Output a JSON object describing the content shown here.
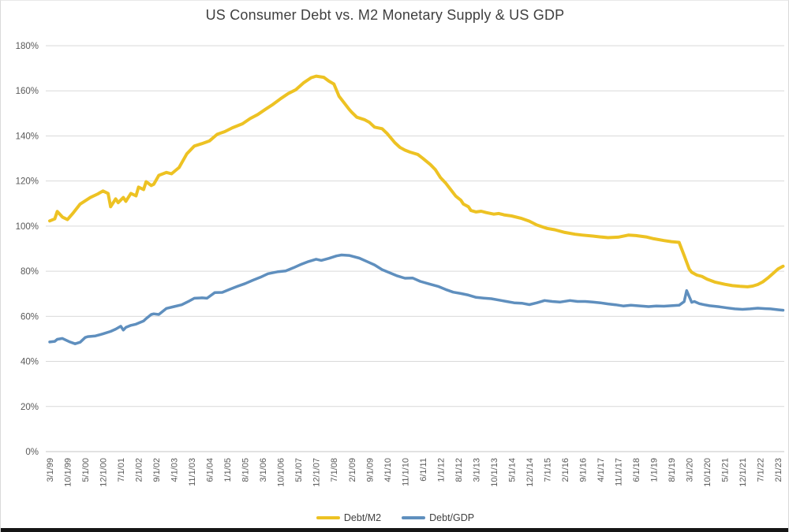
{
  "title": "US Consumer Debt vs. M2 Monetary Supply & US GDP",
  "chart_data": {
    "type": "line",
    "title": "US Consumer Debt vs. M2 Monetary Supply & US GDP",
    "xlabel": "",
    "ylabel": "",
    "y_axis": {
      "min": 0,
      "max": 180,
      "step": 20,
      "unit": "%",
      "tick_labels": [
        "0%",
        "20%",
        "40%",
        "60%",
        "80%",
        "100%",
        "120%",
        "140%",
        "160%",
        "180%"
      ]
    },
    "x_axis": {
      "tick_labels": [
        "3/1/99",
        "10/1/99",
        "5/1/00",
        "12/1/00",
        "7/1/01",
        "2/1/02",
        "9/1/02",
        "4/1/03",
        "11/1/03",
        "6/1/04",
        "1/1/05",
        "8/1/05",
        "3/1/06",
        "10/1/06",
        "5/1/07",
        "12/1/07",
        "7/1/08",
        "2/1/09",
        "9/1/09",
        "4/1/10",
        "11/1/10",
        "6/1/11",
        "1/1/12",
        "8/1/12",
        "3/1/13",
        "10/1/13",
        "5/1/14",
        "12/1/14",
        "7/1/15",
        "2/1/16",
        "9/1/16",
        "4/1/17",
        "11/1/17",
        "6/1/18",
        "1/1/19",
        "8/1/19",
        "3/1/20",
        "10/1/20",
        "5/1/21",
        "12/1/21",
        "7/1/22",
        "2/1/23"
      ],
      "months_between_ticks": 7,
      "total_month_span": 289,
      "label_rotation_deg": 90
    },
    "grid": "horizontal",
    "legend_position": "bottom",
    "series": [
      {
        "name": "Debt/M2",
        "color": "#EDC223",
        "stroke_width": 4,
        "points_unit": "percent, x = months since 3/1/99",
        "points": [
          [
            0,
            102.3
          ],
          [
            2,
            103.2
          ],
          [
            3,
            106.5
          ],
          [
            5,
            104
          ],
          [
            7,
            102.9
          ],
          [
            9,
            105.5
          ],
          [
            12,
            109.8
          ],
          [
            16,
            112.7
          ],
          [
            19,
            114.3
          ],
          [
            21,
            115.6
          ],
          [
            23,
            114.5
          ],
          [
            24,
            108.6
          ],
          [
            26,
            112.1
          ],
          [
            27,
            110.4
          ],
          [
            29,
            112.7
          ],
          [
            30,
            111
          ],
          [
            32,
            114.5
          ],
          [
            34,
            113.4
          ],
          [
            35,
            117.3
          ],
          [
            37,
            116.2
          ],
          [
            38,
            119.7
          ],
          [
            40,
            118
          ],
          [
            41,
            118.6
          ],
          [
            43,
            122.5
          ],
          [
            46,
            123.8
          ],
          [
            48,
            123.2
          ],
          [
            51,
            126
          ],
          [
            54,
            132
          ],
          [
            57,
            135.5
          ],
          [
            60,
            136.6
          ],
          [
            63,
            137.8
          ],
          [
            66,
            140.7
          ],
          [
            69,
            141.9
          ],
          [
            72,
            143.6
          ],
          [
            76,
            145.4
          ],
          [
            79,
            147.7
          ],
          [
            82,
            149.5
          ],
          [
            85,
            151.8
          ],
          [
            88,
            154
          ],
          [
            91,
            156.5
          ],
          [
            94,
            158.8
          ],
          [
            97,
            160.5
          ],
          [
            100,
            163.5
          ],
          [
            103,
            165.8
          ],
          [
            105,
            166.5
          ],
          [
            108,
            166
          ],
          [
            110,
            164.3
          ],
          [
            112,
            163
          ],
          [
            114,
            157.6
          ],
          [
            118,
            151.8
          ],
          [
            119,
            150.5
          ],
          [
            121,
            148.3
          ],
          [
            124,
            147.2
          ],
          [
            126,
            146
          ],
          [
            128,
            143.9
          ],
          [
            131,
            143.2
          ],
          [
            133,
            141
          ],
          [
            136,
            137
          ],
          [
            138,
            134.9
          ],
          [
            140,
            133.7
          ],
          [
            142,
            132.8
          ],
          [
            145,
            131.8
          ],
          [
            147,
            130.1
          ],
          [
            150,
            127.3
          ],
          [
            152,
            125
          ],
          [
            154,
            121.5
          ],
          [
            156,
            119.1
          ],
          [
            158,
            116.2
          ],
          [
            160,
            113.3
          ],
          [
            162,
            111.5
          ],
          [
            163,
            109.8
          ],
          [
            165,
            108.6
          ],
          [
            166,
            106.9
          ],
          [
            168,
            106.3
          ],
          [
            170,
            106.6
          ],
          [
            172,
            106
          ],
          [
            175,
            105.3
          ],
          [
            177,
            105.6
          ],
          [
            179,
            105
          ],
          [
            182,
            104.5
          ],
          [
            186,
            103.4
          ],
          [
            189,
            102.2
          ],
          [
            192,
            100.5
          ],
          [
            196,
            99
          ],
          [
            199,
            98.4
          ],
          [
            203,
            97.2
          ],
          [
            207,
            96.4
          ],
          [
            210,
            96
          ],
          [
            214,
            95.6
          ],
          [
            217,
            95.2
          ],
          [
            220,
            94.9
          ],
          [
            224,
            95.1
          ],
          [
            228,
            96
          ],
          [
            231,
            95.8
          ],
          [
            235,
            95.2
          ],
          [
            238,
            94.4
          ],
          [
            242,
            93.6
          ],
          [
            245,
            93.1
          ],
          [
            248,
            92.8
          ],
          [
            250,
            87
          ],
          [
            252,
            81
          ],
          [
            253,
            79.5
          ],
          [
            255,
            78.3
          ],
          [
            257,
            77.7
          ],
          [
            259,
            76.5
          ],
          [
            262,
            75.2
          ],
          [
            266,
            74.2
          ],
          [
            269,
            73.6
          ],
          [
            272,
            73.3
          ],
          [
            275,
            73.1
          ],
          [
            277,
            73.4
          ],
          [
            279,
            74.1
          ],
          [
            281,
            75.3
          ],
          [
            283,
            77
          ],
          [
            285,
            79
          ],
          [
            287,
            81
          ],
          [
            289,
            82.2
          ]
        ]
      },
      {
        "name": "Debt/GDP",
        "color": "#5F8FBE",
        "stroke_width": 3.5,
        "points_unit": "percent, x = months since 3/1/99",
        "points": [
          [
            0,
            48.6
          ],
          [
            2,
            48.9
          ],
          [
            3,
            49.8
          ],
          [
            5,
            50.2
          ],
          [
            8,
            48.6
          ],
          [
            10,
            47.8
          ],
          [
            12,
            48.5
          ],
          [
            14,
            50.6
          ],
          [
            15,
            51
          ],
          [
            18,
            51.3
          ],
          [
            21,
            52.2
          ],
          [
            24,
            53.3
          ],
          [
            26,
            54.3
          ],
          [
            28,
            55.6
          ],
          [
            29,
            53.9
          ],
          [
            30,
            55.1
          ],
          [
            32,
            56
          ],
          [
            34,
            56.5
          ],
          [
            37,
            57.9
          ],
          [
            38,
            59
          ],
          [
            40,
            60.8
          ],
          [
            41,
            61.1
          ],
          [
            43,
            60.8
          ],
          [
            46,
            63.5
          ],
          [
            49,
            64.3
          ],
          [
            52,
            65.1
          ],
          [
            55,
            66.8
          ],
          [
            57,
            68
          ],
          [
            60,
            68.2
          ],
          [
            62,
            68
          ],
          [
            65,
            70.5
          ],
          [
            68,
            70.6
          ],
          [
            71,
            72
          ],
          [
            74,
            73.3
          ],
          [
            77,
            74.5
          ],
          [
            80,
            76
          ],
          [
            83,
            77.3
          ],
          [
            86,
            78.9
          ],
          [
            90,
            79.8
          ],
          [
            93,
            80.1
          ],
          [
            96,
            81.5
          ],
          [
            99,
            83
          ],
          [
            102,
            84.3
          ],
          [
            105,
            85.3
          ],
          [
            107,
            84.8
          ],
          [
            110,
            85.7
          ],
          [
            113,
            86.8
          ],
          [
            115,
            87.2
          ],
          [
            118,
            87
          ],
          [
            122,
            85.8
          ],
          [
            125,
            84.3
          ],
          [
            128,
            82.8
          ],
          [
            131,
            80.7
          ],
          [
            134,
            79.3
          ],
          [
            137,
            77.9
          ],
          [
            140,
            76.9
          ],
          [
            143,
            77
          ],
          [
            146,
            75.5
          ],
          [
            150,
            74.2
          ],
          [
            153,
            73.3
          ],
          [
            156,
            71.9
          ],
          [
            159,
            70.7
          ],
          [
            162,
            70.1
          ],
          [
            165,
            69.4
          ],
          [
            168,
            68.4
          ],
          [
            171,
            68.1
          ],
          [
            174,
            67.8
          ],
          [
            178,
            67
          ],
          [
            180,
            66.6
          ],
          [
            183,
            66
          ],
          [
            186,
            65.8
          ],
          [
            189,
            65.2
          ],
          [
            192,
            66
          ],
          [
            195,
            67
          ],
          [
            198,
            66.6
          ],
          [
            201,
            66.3
          ],
          [
            205,
            67
          ],
          [
            208,
            66.6
          ],
          [
            211,
            66.6
          ],
          [
            214,
            66.3
          ],
          [
            217,
            66
          ],
          [
            220,
            65.5
          ],
          [
            223,
            65.1
          ],
          [
            226,
            64.6
          ],
          [
            229,
            64.9
          ],
          [
            233,
            64.6
          ],
          [
            236,
            64.3
          ],
          [
            239,
            64.6
          ],
          [
            242,
            64.5
          ],
          [
            245,
            64.7
          ],
          [
            248,
            64.9
          ],
          [
            250,
            66.5
          ],
          [
            251,
            71.4
          ],
          [
            252,
            68.8
          ],
          [
            253,
            66.2
          ],
          [
            254,
            66.6
          ],
          [
            256,
            65.6
          ],
          [
            258,
            65.1
          ],
          [
            260,
            64.7
          ],
          [
            264,
            64.2
          ],
          [
            267,
            63.7
          ],
          [
            270,
            63.3
          ],
          [
            273,
            63.1
          ],
          [
            276,
            63.3
          ],
          [
            279,
            63.6
          ],
          [
            282,
            63.4
          ],
          [
            284,
            63.3
          ],
          [
            287,
            62.9
          ],
          [
            289,
            62.7
          ]
        ]
      }
    ],
    "colors": {
      "gridline": "#D9D9D9",
      "axis_line": "#C6C6C6",
      "tick_label": "#595959",
      "title": "#404040"
    }
  },
  "legend": {
    "items": [
      {
        "label": "Debt/M2",
        "color": "#EDC223"
      },
      {
        "label": "Debt/GDP",
        "color": "#5F8FBE"
      }
    ]
  }
}
